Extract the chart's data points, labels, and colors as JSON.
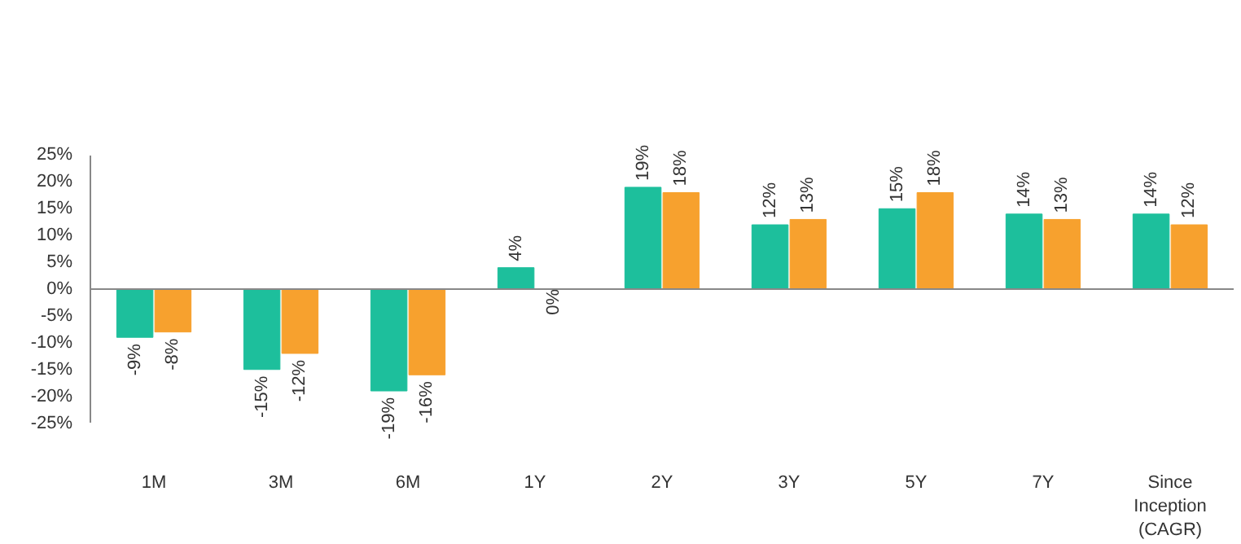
{
  "chart_data": {
    "type": "bar",
    "categories": [
      "1M",
      "3M",
      "6M",
      "1Y",
      "2Y",
      "3Y",
      "5Y",
      "7Y",
      "Since\nInception\n(CAGR)"
    ],
    "series": [
      {
        "color": "#1dbf9c",
        "values": [
          -9,
          -15,
          -19,
          4,
          19,
          12,
          15,
          14,
          14
        ],
        "value_labels": [
          "-9%",
          "-15%",
          "-19%",
          "4%",
          "19%",
          "12%",
          "15%",
          "14%",
          "14%"
        ]
      },
      {
        "color": "#f7a12e",
        "values": [
          -8,
          -12,
          -16,
          0,
          18,
          13,
          18,
          13,
          12
        ],
        "value_labels": [
          "-8%",
          "-12%",
          "-16%",
          "0%",
          "18%",
          "13%",
          "18%",
          "13%",
          "12%"
        ]
      }
    ],
    "ylim": [
      -25,
      25
    ],
    "yticks": [
      {
        "value": -25,
        "label": "-25%"
      },
      {
        "value": -20,
        "label": "-20%"
      },
      {
        "value": -15,
        "label": "-15%"
      },
      {
        "value": -10,
        "label": "-10%"
      },
      {
        "value": -5,
        "label": "-5%"
      },
      {
        "value": 0,
        "label": "0%"
      },
      {
        "value": 5,
        "label": "5%"
      },
      {
        "value": 10,
        "label": "10%"
      },
      {
        "value": 15,
        "label": "15%"
      },
      {
        "value": 20,
        "label": "20%"
      },
      {
        "value": 25,
        "label": "25%"
      }
    ],
    "ref_lines": [
      {
        "axis": "y",
        "value": 0,
        "color": "#888888"
      }
    ],
    "grid": false
  }
}
